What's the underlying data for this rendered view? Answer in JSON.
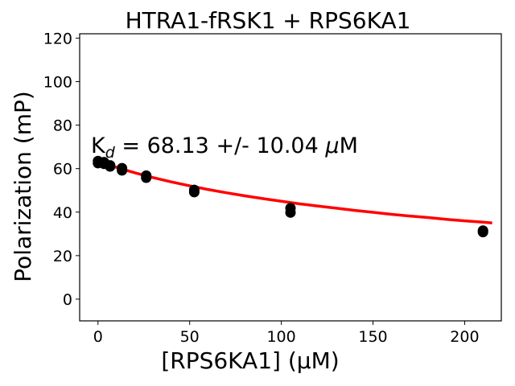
{
  "chart_data": {
    "type": "scatter",
    "title": "HTRA1-fRSK1 + RPS6KA1",
    "xlabel": "[RPS6KA1] (µM)",
    "ylabel": "Polarization (mP)",
    "xlim": [
      -10,
      220
    ],
    "ylim": [
      -10,
      122
    ],
    "xticks": [
      0,
      50,
      100,
      150,
      200
    ],
    "yticks": [
      0,
      20,
      40,
      60,
      80,
      100,
      120
    ],
    "grid": false,
    "points": [
      {
        "x": 0,
        "y": 63.5
      },
      {
        "x": 0,
        "y": 62.5
      },
      {
        "x": 3.3,
        "y": 63.0
      },
      {
        "x": 3.3,
        "y": 62.2
      },
      {
        "x": 6.6,
        "y": 61.5
      },
      {
        "x": 6.6,
        "y": 61.0
      },
      {
        "x": 13.1,
        "y": 60.2
      },
      {
        "x": 13.1,
        "y": 59.2
      },
      {
        "x": 26.3,
        "y": 56.8
      },
      {
        "x": 26.3,
        "y": 55.8
      },
      {
        "x": 52.5,
        "y": 50.2
      },
      {
        "x": 52.5,
        "y": 49.2
      },
      {
        "x": 105,
        "y": 41.8
      },
      {
        "x": 105,
        "y": 39.8
      },
      {
        "x": 210,
        "y": 31.5
      },
      {
        "x": 210,
        "y": 30.8
      }
    ],
    "point_color": "#000000",
    "fit": {
      "color": "#ff0000",
      "x": [
        0,
        10,
        20,
        30,
        40,
        50,
        60,
        70,
        80,
        90,
        100,
        110,
        120,
        130,
        140,
        150,
        160,
        170,
        180,
        190,
        200,
        210,
        215
      ],
      "y": [
        63.3,
        60.6,
        58.1,
        55.9,
        53.9,
        52.1,
        50.4,
        48.9,
        47.5,
        46.2,
        45.0,
        43.8,
        42.8,
        41.8,
        40.8,
        39.9,
        39.0,
        38.2,
        37.5,
        36.7,
        36.0,
        35.4,
        35.0
      ]
    },
    "annotation": {
      "k": "K",
      "k_sub": "d",
      "text": " = 68.13 +/- 10.04 ",
      "mu": "μ",
      "unit": "M"
    }
  }
}
